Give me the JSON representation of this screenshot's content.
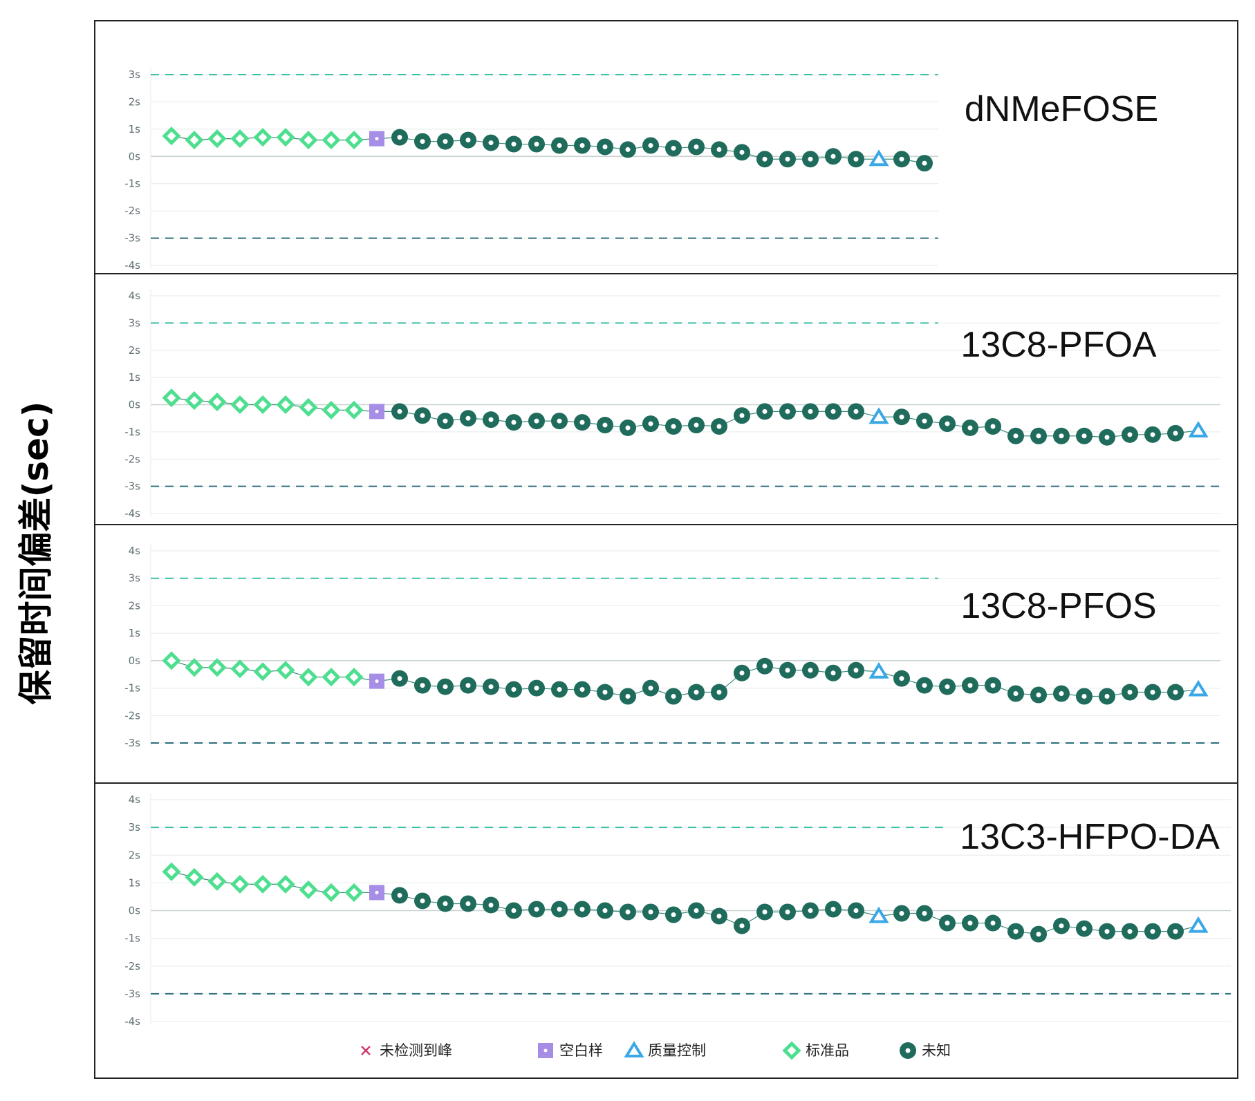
{
  "y_axis_label": "保留时间偏差(sec)",
  "legend": {
    "not_detected": "未检测到峰",
    "blank": "空白样",
    "qc": "质量控制",
    "standard": "标准品",
    "unknown": "未知"
  },
  "colors": {
    "standard": "#4ddf8f",
    "blank": "#a68ee6",
    "unknown": "#1f6b5c",
    "qc": "#3aa7e6",
    "not_detected": "#d43a6c",
    "limit_upper": "#3cbfa8",
    "limit_lower": "#2d6e7e",
    "grid": "#e4ebea",
    "zero_line": "#c9d3d2"
  },
  "chart_data": [
    {
      "type": "scatter",
      "title": "dNMeFOSE",
      "ylim": [
        -4,
        3
      ],
      "yticks": [
        "3s",
        "2s",
        "1s",
        "0s",
        "-1s",
        "-2s",
        "-3s",
        "-4s"
      ],
      "limits": [
        3,
        -3
      ],
      "grid": true,
      "points": [
        {
          "c": "standard",
          "y": 0.75
        },
        {
          "c": "standard",
          "y": 0.6
        },
        {
          "c": "standard",
          "y": 0.65
        },
        {
          "c": "standard",
          "y": 0.65
        },
        {
          "c": "standard",
          "y": 0.7
        },
        {
          "c": "standard",
          "y": 0.7
        },
        {
          "c": "standard",
          "y": 0.6
        },
        {
          "c": "standard",
          "y": 0.6
        },
        {
          "c": "standard",
          "y": 0.6
        },
        {
          "c": "blank",
          "y": 0.65
        },
        {
          "c": "unknown",
          "y": 0.7
        },
        {
          "c": "unknown",
          "y": 0.55
        },
        {
          "c": "unknown",
          "y": 0.55
        },
        {
          "c": "unknown",
          "y": 0.6
        },
        {
          "c": "unknown",
          "y": 0.5
        },
        {
          "c": "unknown",
          "y": 0.45
        },
        {
          "c": "unknown",
          "y": 0.45
        },
        {
          "c": "unknown",
          "y": 0.4
        },
        {
          "c": "unknown",
          "y": 0.4
        },
        {
          "c": "unknown",
          "y": 0.35
        },
        {
          "c": "unknown",
          "y": 0.25
        },
        {
          "c": "unknown",
          "y": 0.4
        },
        {
          "c": "unknown",
          "y": 0.3
        },
        {
          "c": "unknown",
          "y": 0.35
        },
        {
          "c": "unknown",
          "y": 0.25
        },
        {
          "c": "unknown",
          "y": 0.15
        },
        {
          "c": "unknown",
          "y": -0.1
        },
        {
          "c": "unknown",
          "y": -0.1
        },
        {
          "c": "unknown",
          "y": -0.1
        },
        {
          "c": "unknown",
          "y": 0.0
        },
        {
          "c": "unknown",
          "y": -0.1
        },
        {
          "c": "qc",
          "y": -0.1
        },
        {
          "c": "unknown",
          "y": -0.1
        },
        {
          "c": "unknown",
          "y": -0.25
        }
      ]
    },
    {
      "type": "scatter",
      "title": "13C8-PFOA",
      "ylim": [
        -4,
        4
      ],
      "yticks": [
        "4s",
        "3s",
        "2s",
        "1s",
        "0s",
        "-1s",
        "-2s",
        "-3s",
        "-4s"
      ],
      "limits": [
        3,
        -3
      ],
      "grid": true,
      "points": [
        {
          "c": "standard",
          "y": 0.25
        },
        {
          "c": "standard",
          "y": 0.15
        },
        {
          "c": "standard",
          "y": 0.1
        },
        {
          "c": "standard",
          "y": 0.0
        },
        {
          "c": "standard",
          "y": 0.0
        },
        {
          "c": "standard",
          "y": 0.0
        },
        {
          "c": "standard",
          "y": -0.1
        },
        {
          "c": "standard",
          "y": -0.2
        },
        {
          "c": "standard",
          "y": -0.2
        },
        {
          "c": "blank",
          "y": -0.25
        },
        {
          "c": "unknown",
          "y": -0.25
        },
        {
          "c": "unknown",
          "y": -0.4
        },
        {
          "c": "unknown",
          "y": -0.6
        },
        {
          "c": "unknown",
          "y": -0.5
        },
        {
          "c": "unknown",
          "y": -0.55
        },
        {
          "c": "unknown",
          "y": -0.65
        },
        {
          "c": "unknown",
          "y": -0.6
        },
        {
          "c": "unknown",
          "y": -0.6
        },
        {
          "c": "unknown",
          "y": -0.65
        },
        {
          "c": "unknown",
          "y": -0.75
        },
        {
          "c": "unknown",
          "y": -0.85
        },
        {
          "c": "unknown",
          "y": -0.7
        },
        {
          "c": "unknown",
          "y": -0.8
        },
        {
          "c": "unknown",
          "y": -0.75
        },
        {
          "c": "unknown",
          "y": -0.8
        },
        {
          "c": "unknown",
          "y": -0.4
        },
        {
          "c": "unknown",
          "y": -0.25
        },
        {
          "c": "unknown",
          "y": -0.25
        },
        {
          "c": "unknown",
          "y": -0.25
        },
        {
          "c": "unknown",
          "y": -0.25
        },
        {
          "c": "unknown",
          "y": -0.25
        },
        {
          "c": "qc",
          "y": -0.45
        },
        {
          "c": "unknown",
          "y": -0.45
        },
        {
          "c": "unknown",
          "y": -0.6
        },
        {
          "c": "unknown",
          "y": -0.7
        },
        {
          "c": "unknown",
          "y": -0.85
        },
        {
          "c": "unknown",
          "y": -0.8
        },
        {
          "c": "unknown",
          "y": -1.15
        },
        {
          "c": "unknown",
          "y": -1.15
        },
        {
          "c": "unknown",
          "y": -1.15
        },
        {
          "c": "unknown",
          "y": -1.15
        },
        {
          "c": "unknown",
          "y": -1.2
        },
        {
          "c": "unknown",
          "y": -1.1
        },
        {
          "c": "unknown",
          "y": -1.1
        },
        {
          "c": "unknown",
          "y": -1.05
        },
        {
          "c": "qc",
          "y": -0.95
        }
      ]
    },
    {
      "type": "scatter",
      "title": "13C8-PFOS",
      "ylim": [
        -3,
        4
      ],
      "yticks": [
        "4s",
        "3s",
        "2s",
        "1s",
        "0s",
        "-1s",
        "-2s",
        "-3s"
      ],
      "limits": [
        3,
        -3
      ],
      "grid": true,
      "points": [
        {
          "c": "standard",
          "y": 0.0
        },
        {
          "c": "standard",
          "y": -0.25
        },
        {
          "c": "standard",
          "y": -0.25
        },
        {
          "c": "standard",
          "y": -0.3
        },
        {
          "c": "standard",
          "y": -0.4
        },
        {
          "c": "standard",
          "y": -0.35
        },
        {
          "c": "standard",
          "y": -0.6
        },
        {
          "c": "standard",
          "y": -0.6
        },
        {
          "c": "standard",
          "y": -0.6
        },
        {
          "c": "blank",
          "y": -0.75
        },
        {
          "c": "unknown",
          "y": -0.65
        },
        {
          "c": "unknown",
          "y": -0.9
        },
        {
          "c": "unknown",
          "y": -0.95
        },
        {
          "c": "unknown",
          "y": -0.9
        },
        {
          "c": "unknown",
          "y": -0.95
        },
        {
          "c": "unknown",
          "y": -1.05
        },
        {
          "c": "unknown",
          "y": -1.0
        },
        {
          "c": "unknown",
          "y": -1.05
        },
        {
          "c": "unknown",
          "y": -1.05
        },
        {
          "c": "unknown",
          "y": -1.15
        },
        {
          "c": "unknown",
          "y": -1.3
        },
        {
          "c": "unknown",
          "y": -1.0
        },
        {
          "c": "unknown",
          "y": -1.3
        },
        {
          "c": "unknown",
          "y": -1.15
        },
        {
          "c": "unknown",
          "y": -1.15
        },
        {
          "c": "unknown",
          "y": -0.45
        },
        {
          "c": "unknown",
          "y": -0.2
        },
        {
          "c": "unknown",
          "y": -0.35
        },
        {
          "c": "unknown",
          "y": -0.35
        },
        {
          "c": "unknown",
          "y": -0.45
        },
        {
          "c": "unknown",
          "y": -0.35
        },
        {
          "c": "qc",
          "y": -0.4
        },
        {
          "c": "unknown",
          "y": -0.65
        },
        {
          "c": "unknown",
          "y": -0.9
        },
        {
          "c": "unknown",
          "y": -0.95
        },
        {
          "c": "unknown",
          "y": -0.9
        },
        {
          "c": "unknown",
          "y": -0.9
        },
        {
          "c": "unknown",
          "y": -1.2
        },
        {
          "c": "unknown",
          "y": -1.25
        },
        {
          "c": "unknown",
          "y": -1.2
        },
        {
          "c": "unknown",
          "y": -1.3
        },
        {
          "c": "unknown",
          "y": -1.3
        },
        {
          "c": "unknown",
          "y": -1.15
        },
        {
          "c": "unknown",
          "y": -1.15
        },
        {
          "c": "unknown",
          "y": -1.15
        },
        {
          "c": "qc",
          "y": -1.05
        }
      ]
    },
    {
      "type": "scatter",
      "title": "13C3-HFPO-DA",
      "ylim": [
        -4,
        4
      ],
      "yticks": [
        "4s",
        "3s",
        "2s",
        "1s",
        "0s",
        "-1s",
        "-2s",
        "-3s",
        "-4s"
      ],
      "limits": [
        3,
        -3
      ],
      "grid": true,
      "points": [
        {
          "c": "standard",
          "y": 1.4
        },
        {
          "c": "standard",
          "y": 1.2
        },
        {
          "c": "standard",
          "y": 1.05
        },
        {
          "c": "standard",
          "y": 0.95
        },
        {
          "c": "standard",
          "y": 0.95
        },
        {
          "c": "standard",
          "y": 0.95
        },
        {
          "c": "standard",
          "y": 0.75
        },
        {
          "c": "standard",
          "y": 0.65
        },
        {
          "c": "standard",
          "y": 0.65
        },
        {
          "c": "blank",
          "y": 0.65
        },
        {
          "c": "unknown",
          "y": 0.55
        },
        {
          "c": "unknown",
          "y": 0.35
        },
        {
          "c": "unknown",
          "y": 0.25
        },
        {
          "c": "unknown",
          "y": 0.25
        },
        {
          "c": "unknown",
          "y": 0.2
        },
        {
          "c": "unknown",
          "y": 0.0
        },
        {
          "c": "unknown",
          "y": 0.05
        },
        {
          "c": "unknown",
          "y": 0.05
        },
        {
          "c": "unknown",
          "y": 0.05
        },
        {
          "c": "unknown",
          "y": 0.0
        },
        {
          "c": "unknown",
          "y": -0.05
        },
        {
          "c": "unknown",
          "y": -0.05
        },
        {
          "c": "unknown",
          "y": -0.15
        },
        {
          "c": "unknown",
          "y": 0.0
        },
        {
          "c": "unknown",
          "y": -0.2
        },
        {
          "c": "unknown",
          "y": -0.55
        },
        {
          "c": "unknown",
          "y": -0.05
        },
        {
          "c": "unknown",
          "y": -0.05
        },
        {
          "c": "unknown",
          "y": 0.0
        },
        {
          "c": "unknown",
          "y": 0.05
        },
        {
          "c": "unknown",
          "y": 0.0
        },
        {
          "c": "qc",
          "y": -0.2
        },
        {
          "c": "unknown",
          "y": -0.1
        },
        {
          "c": "unknown",
          "y": -0.1
        },
        {
          "c": "unknown",
          "y": -0.45
        },
        {
          "c": "unknown",
          "y": -0.45
        },
        {
          "c": "unknown",
          "y": -0.45
        },
        {
          "c": "unknown",
          "y": -0.75
        },
        {
          "c": "unknown",
          "y": -0.85
        },
        {
          "c": "unknown",
          "y": -0.55
        },
        {
          "c": "unknown",
          "y": -0.65
        },
        {
          "c": "unknown",
          "y": -0.75
        },
        {
          "c": "unknown",
          "y": -0.75
        },
        {
          "c": "unknown",
          "y": -0.75
        },
        {
          "c": "unknown",
          "y": -0.75
        },
        {
          "c": "qc",
          "y": -0.55
        }
      ]
    }
  ]
}
